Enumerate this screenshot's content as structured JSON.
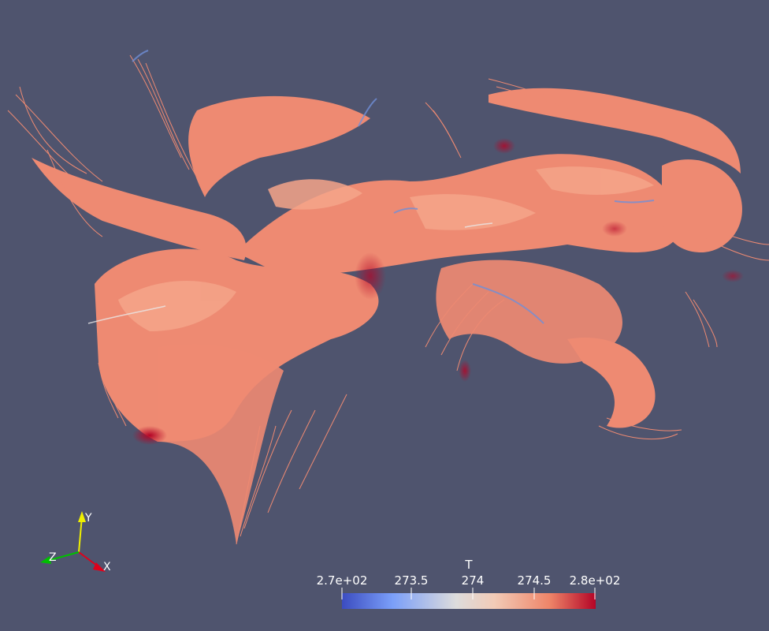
{
  "scene": {
    "background": "#4f546e",
    "description_colors": {
      "stream_main": "#ee8a72",
      "stream_light": "#f5a489",
      "stream_hot": "#b40426",
      "stream_cool": "#6f8fd8"
    }
  },
  "color_legend": {
    "title": "T",
    "tick_labels": [
      "2.7e+02",
      "273.5",
      "274",
      "274.5",
      "2.8e+02"
    ],
    "colormap": [
      "#3b4cc0",
      "#7b9ff9",
      "#c0d4f5",
      "#f2cbb7",
      "#ee8468",
      "#b40426"
    ]
  },
  "orientation_axes": {
    "x_label": "X",
    "y_label": "Y",
    "z_label": "Z",
    "x_color": "#e0001a",
    "y_color": "#f0f000",
    "z_color": "#00c000"
  }
}
